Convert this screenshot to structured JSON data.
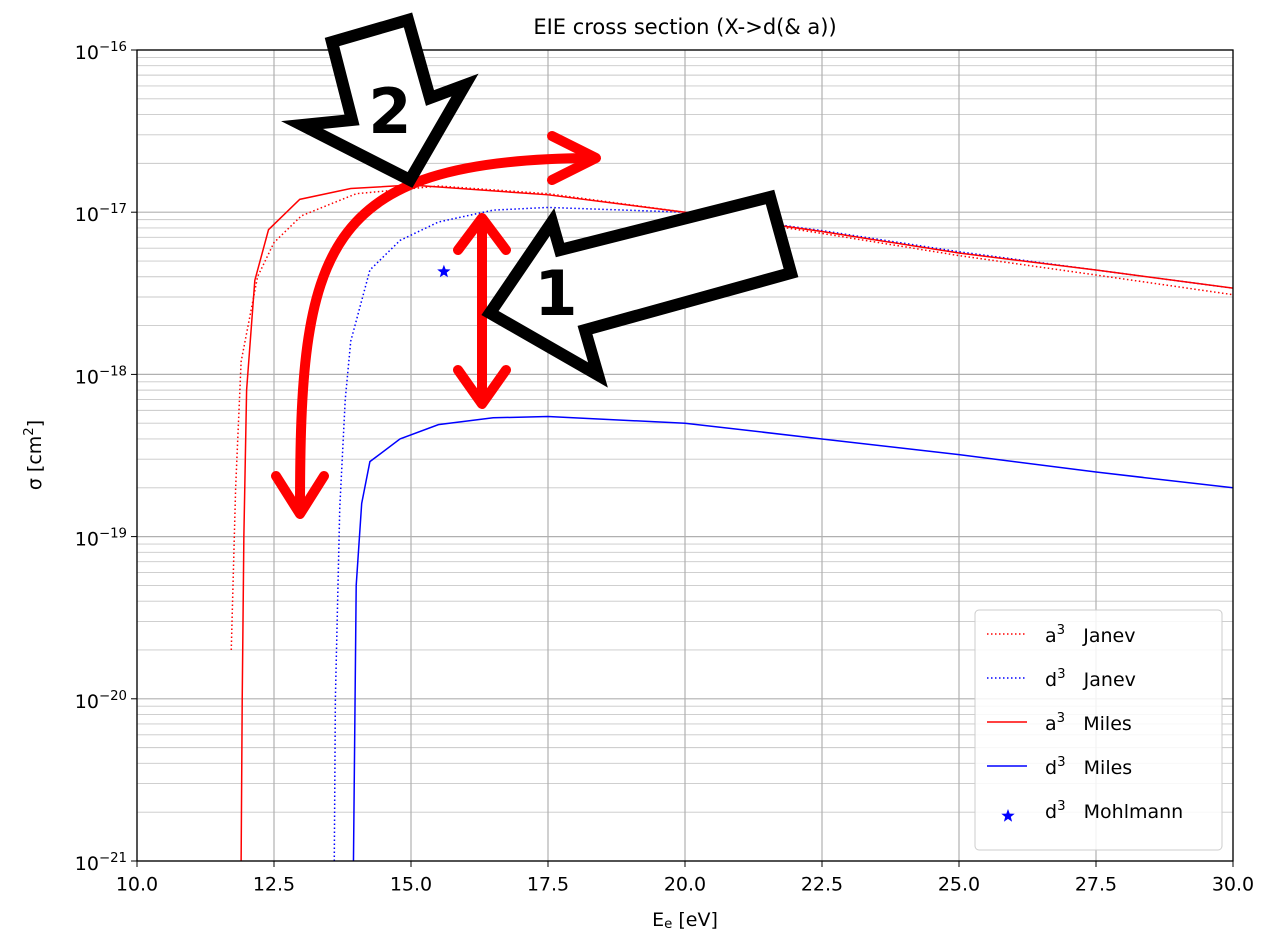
{
  "chart_data": {
    "type": "line",
    "title": "EIE cross section (X->d(& a))",
    "x_label": "E_{e}   [eV]",
    "y_label": "σ   [cm^{2}]",
    "yscale": "log",
    "grid": true,
    "minor_grid": true,
    "legend": "lower right",
    "xlim": [
      10,
      30
    ],
    "ylim": [
      1e-21,
      1e-16
    ],
    "xticks": [
      {
        "value": 10,
        "label": "10.0"
      },
      {
        "value": 12.5,
        "label": "12.5"
      },
      {
        "value": 15,
        "label": "15.0"
      },
      {
        "value": 17.5,
        "label": "17.5"
      },
      {
        "value": 20,
        "label": "20.0"
      },
      {
        "value": 22.5,
        "label": "22.5"
      },
      {
        "value": 25,
        "label": "25.0"
      },
      {
        "value": 27.5,
        "label": "27.5"
      },
      {
        "value": 30,
        "label": "30.0"
      }
    ],
    "yticks": [
      {
        "value": 1e-21,
        "label": "10^{−21}"
      },
      {
        "value": 1e-20,
        "label": "10^{−20}"
      },
      {
        "value": 1e-19,
        "label": "10^{−19}"
      },
      {
        "value": 1e-18,
        "label": "10^{−18}"
      },
      {
        "value": 1e-17,
        "label": "10^{−17}"
      },
      {
        "value": 1e-16,
        "label": "10^{−16}"
      }
    ],
    "series": [
      {
        "name": "a^{3}   Janev",
        "color": "#ff0000",
        "style": "dotted",
        "x": [
          11.72,
          11.8,
          11.9,
          12.2,
          12.5,
          13,
          14,
          15.5,
          17.5,
          20,
          22.5,
          25,
          27.5,
          30
        ],
        "values": [
          2e-20,
          2e-19,
          1.2e-18,
          4e-18,
          6.5e-18,
          9.5e-18,
          1.3e-17,
          1.45e-17,
          1.3e-17,
          1e-17,
          7.4e-18,
          5.4e-18,
          4.1e-18,
          3.1e-18
        ]
      },
      {
        "name": "d^{3}   Janev",
        "color": "#0000ff",
        "style": "dotted",
        "x": [
          13.6,
          13.62,
          13.7,
          13.8,
          13.9,
          14.25,
          14.8,
          15.5,
          16.5,
          17.5,
          20,
          22.5,
          25,
          27.5,
          30
        ],
        "values": [
          1e-21,
          1e-20,
          1.5e-19,
          7e-19,
          1.6e-18,
          4.4e-18,
          6.7e-18,
          8.7e-18,
          1.03e-17,
          1.07e-17,
          1e-17,
          7.7e-18,
          5.7e-18,
          4.4e-18,
          3.4e-18
        ]
      },
      {
        "name": "a^{3}   Miles",
        "color": "#ff0000",
        "style": "solid",
        "x": [
          11.9,
          11.92,
          11.95,
          12.0,
          12.15,
          12.4,
          12.97,
          13.9,
          15,
          17.5,
          20,
          22.5,
          25,
          27.5,
          30
        ],
        "values": [
          1e-21,
          1e-20,
          1e-19,
          8e-19,
          3.8e-18,
          7.8e-18,
          1.2e-17,
          1.4e-17,
          1.47e-17,
          1.28e-17,
          1e-17,
          7.6e-18,
          5.6e-18,
          4.4e-18,
          3.4e-18
        ]
      },
      {
        "name": "d^{3}   Miles",
        "color": "#0000ff",
        "style": "solid",
        "x": [
          13.95,
          14.0,
          14.1,
          14.25,
          14.8,
          15.5,
          16.5,
          17.5,
          20,
          22.5,
          25,
          27.5,
          30
        ],
        "values": [
          1e-21,
          5e-20,
          1.6e-19,
          2.9e-19,
          4e-19,
          4.9e-19,
          5.4e-19,
          5.5e-19,
          5e-19,
          4e-19,
          3.2e-19,
          2.5e-19,
          2e-19
        ]
      },
      {
        "name": "d^{3}   Mohlmann",
        "color": "#0000ff",
        "style": "star",
        "x": [
          15.6
        ],
        "values": [
          4.3e-18
        ]
      }
    ],
    "annotations": [
      "1",
      "2"
    ]
  }
}
